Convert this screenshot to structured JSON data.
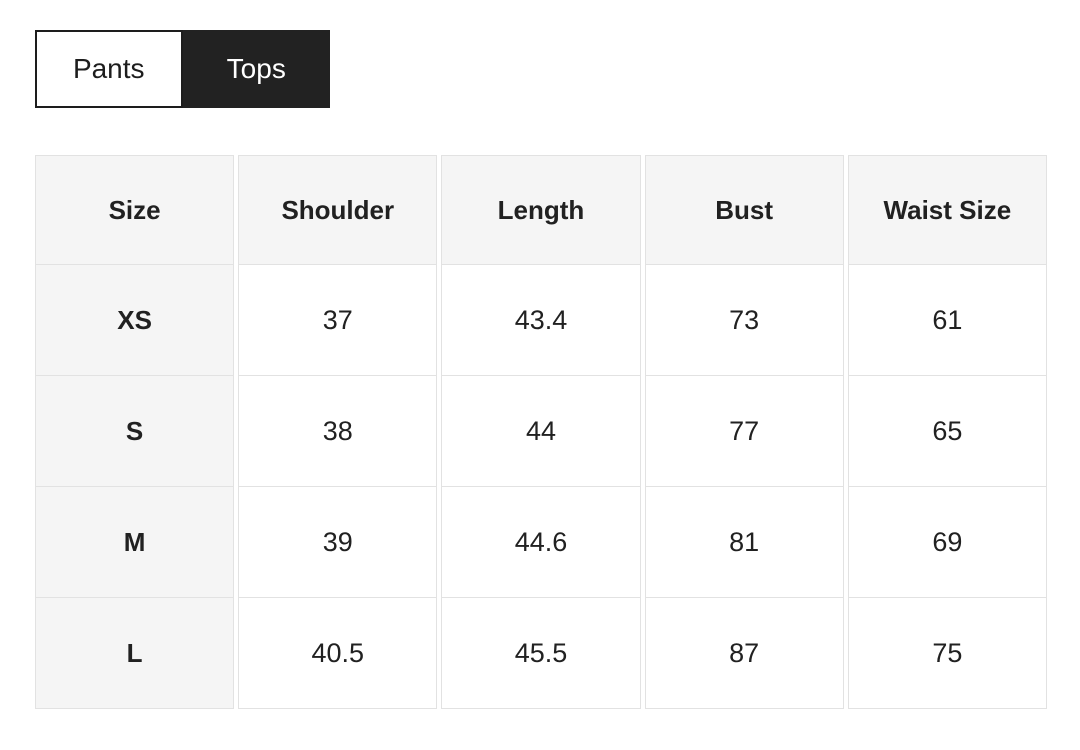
{
  "tabs": [
    {
      "label": "Pants",
      "active": false
    },
    {
      "label": "Tops",
      "active": true
    }
  ],
  "table": {
    "columns": [
      "Size",
      "Shoulder",
      "Length",
      "Bust",
      "Waist Size"
    ],
    "rows": [
      {
        "size": "XS",
        "values": [
          "37",
          "43.4",
          "73",
          "61"
        ]
      },
      {
        "size": "S",
        "values": [
          "38",
          "44",
          "77",
          "65"
        ]
      },
      {
        "size": "M",
        "values": [
          "39",
          "44.6",
          "81",
          "69"
        ]
      },
      {
        "size": "L",
        "values": [
          "40.5",
          "45.5",
          "87",
          "75"
        ]
      }
    ]
  },
  "colors": {
    "active_tab_bg": "#222222",
    "tab_border": "#1d1d1d",
    "header_cell_bg": "#f5f5f5",
    "cell_border": "#e2e2e2",
    "text": "#212121"
  }
}
